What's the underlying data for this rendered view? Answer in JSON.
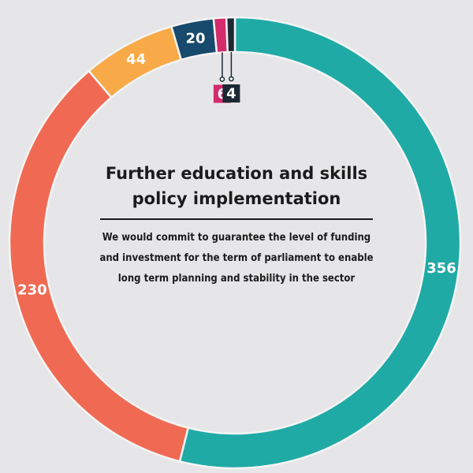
{
  "chart_data": {
    "type": "donut",
    "title": "Further education and skills policy implementation",
    "subtitle": "We would commit to guarantee the level of funding and investment for the term of parliament to enable long term planning and stability in the sector",
    "slices": [
      {
        "value": 356,
        "label": "356",
        "color": "#20aaa6"
      },
      {
        "value": 230,
        "label": "230",
        "color": "#f06a53"
      },
      {
        "value": 44,
        "label": "44",
        "color": "#f8aa48"
      },
      {
        "value": 20,
        "label": "20",
        "color": "#174a6c"
      },
      {
        "value": 6,
        "label": "6",
        "color": "#d42b6c"
      },
      {
        "value": 4,
        "label": "4",
        "color": "#1c2833"
      }
    ],
    "start": "top",
    "direction": "counterclockwise-from-teal"
  },
  "colors": {
    "background": "#e6e6e8",
    "divider": "#f4f4f4",
    "text_dark": "#1b1b1b"
  }
}
